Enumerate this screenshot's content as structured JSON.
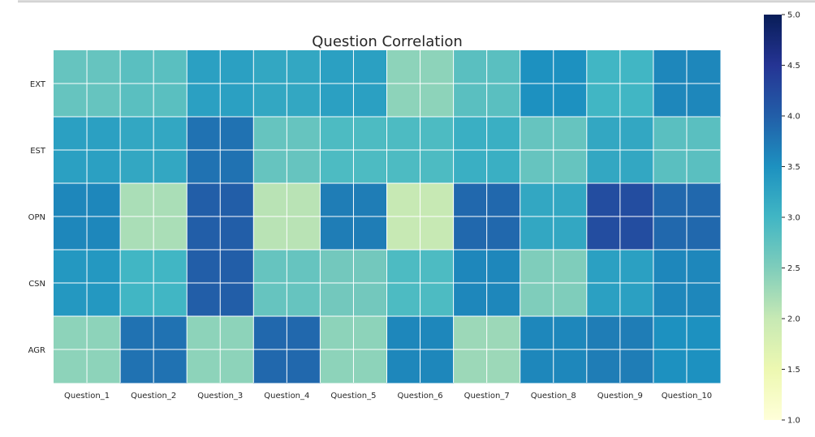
{
  "chart_data": {
    "type": "heatmap",
    "title": "Question Correlation",
    "xlabel": "",
    "ylabel": "",
    "x_categories": [
      "Question_1",
      "Question_2",
      "Question_3",
      "Question_4",
      "Question_5",
      "Question_6",
      "Question_7",
      "Question_8",
      "Question_9",
      "Question_10"
    ],
    "y_categories": [
      "EXT",
      "EST",
      "OPN",
      "CSN",
      "AGR"
    ],
    "values": [
      [
        2.7,
        2.8,
        3.3,
        3.2,
        3.3,
        2.4,
        2.8,
        3.5,
        3.0,
        3.6
      ],
      [
        3.3,
        3.2,
        3.8,
        2.7,
        2.9,
        2.9,
        3.1,
        2.7,
        3.2,
        2.8
      ],
      [
        3.6,
        2.2,
        4.0,
        2.1,
        3.7,
        2.0,
        3.9,
        3.2,
        4.2,
        3.9
      ],
      [
        3.4,
        3.0,
        4.0,
        2.7,
        2.6,
        2.9,
        3.6,
        2.5,
        3.3,
        3.6
      ],
      [
        2.4,
        3.8,
        2.4,
        3.9,
        2.4,
        3.6,
        2.3,
        3.6,
        3.7,
        3.5
      ]
    ],
    "colorbar": {
      "range": [
        1.0,
        5.0
      ],
      "ticks": [
        "1.0",
        "1.5",
        "2.0",
        "2.5",
        "3.0",
        "3.5",
        "4.0",
        "4.5",
        "5.0"
      ],
      "colormap": "YlGnBu"
    },
    "grid": true
  }
}
